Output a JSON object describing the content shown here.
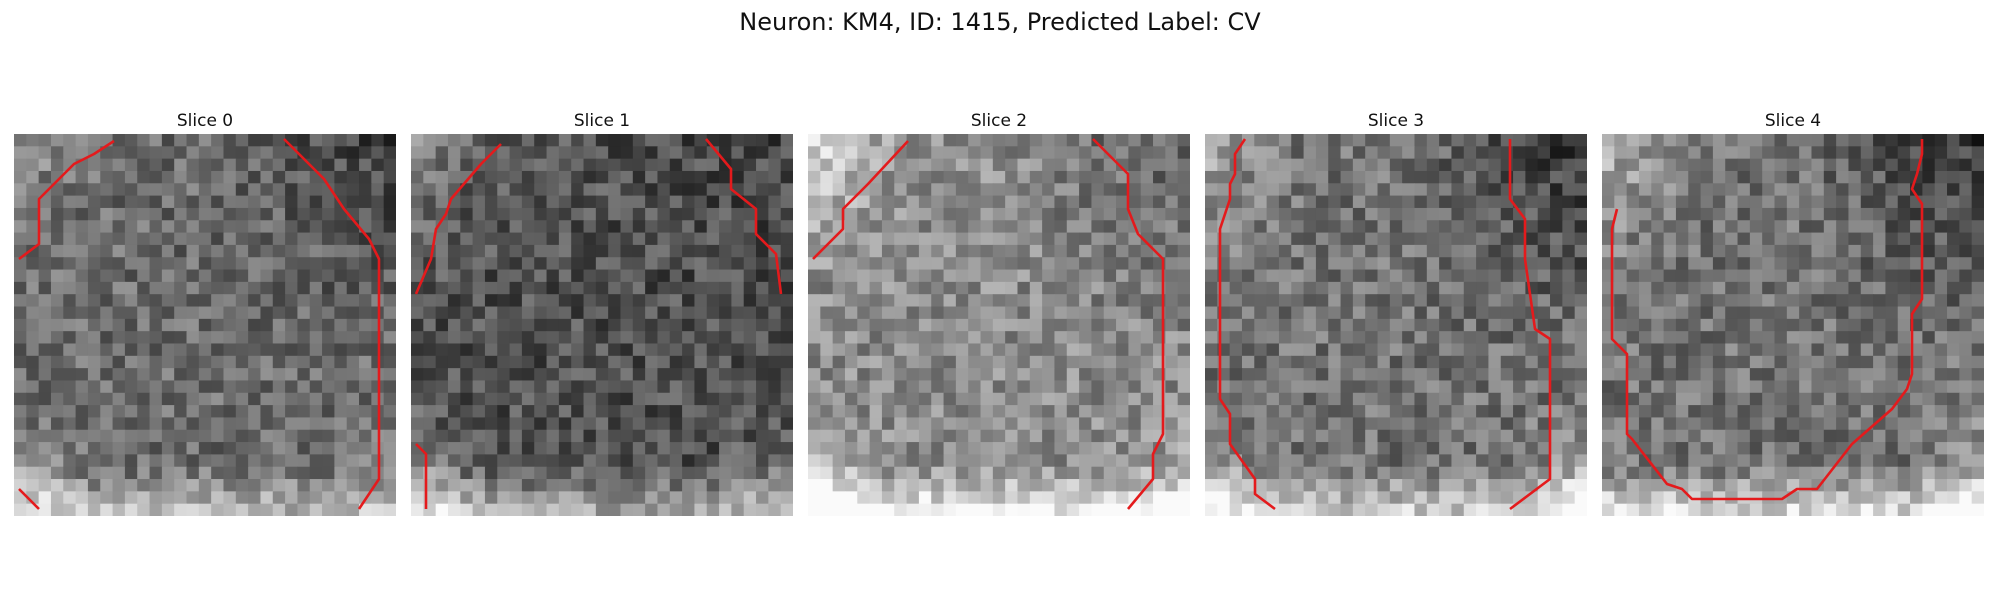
{
  "figure": {
    "title": "Neuron: KM4, ID: 1415, Predicted Label: CV",
    "contour_color": "#e41a1c",
    "slices": [
      {
        "title": "Slice 0"
      },
      {
        "title": "Slice 1"
      },
      {
        "title": "Slice 2"
      },
      {
        "title": "Slice 3"
      },
      {
        "title": "Slice 4"
      }
    ]
  }
}
